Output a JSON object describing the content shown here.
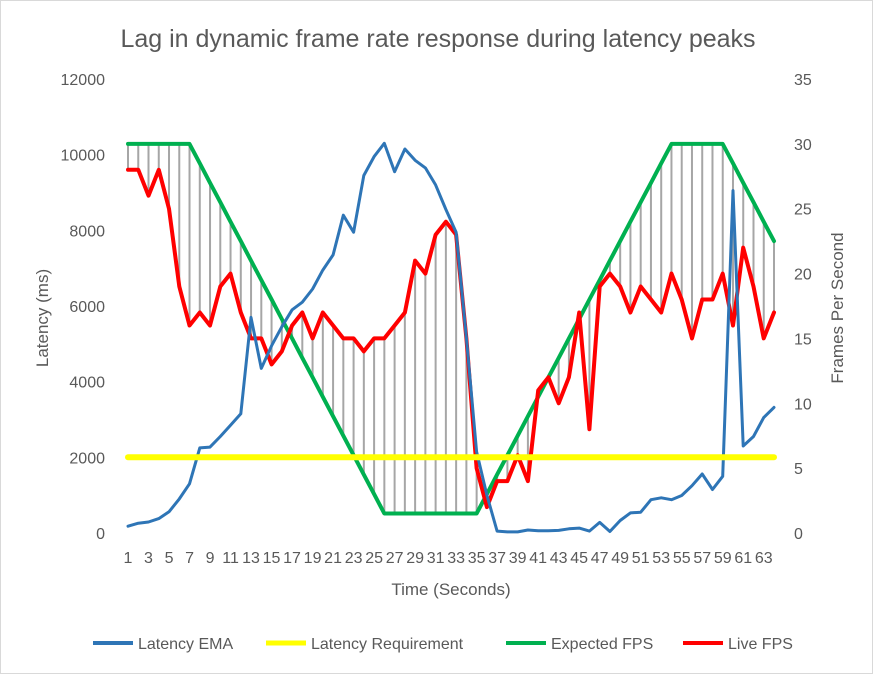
{
  "chart_data": {
    "type": "line",
    "title": "Lag in dynamic frame rate response during latency peaks",
    "xlabel": "Time (Seconds)",
    "ylabel": "Latency (ms)",
    "y2label": "Frames Per Second",
    "x": [
      1,
      2,
      3,
      4,
      5,
      6,
      7,
      8,
      9,
      10,
      11,
      12,
      13,
      14,
      15,
      16,
      17,
      18,
      19,
      20,
      21,
      22,
      23,
      24,
      25,
      26,
      27,
      28,
      29,
      30,
      31,
      32,
      33,
      34,
      35,
      36,
      37,
      38,
      39,
      40,
      41,
      42,
      43,
      44,
      45,
      46,
      47,
      48,
      49,
      50,
      51,
      52,
      53,
      54,
      55,
      56,
      57,
      58,
      59,
      60,
      61,
      62,
      63,
      64
    ],
    "x_tick_labels": [
      "1",
      "3",
      "5",
      "7",
      "9",
      "11",
      "13",
      "15",
      "17",
      "19",
      "21",
      "23",
      "25",
      "27",
      "29",
      "31",
      "33",
      "35",
      "37",
      "39",
      "41",
      "43",
      "45",
      "47",
      "49",
      "51",
      "53",
      "55",
      "57",
      "59",
      "61",
      "63"
    ],
    "ylim": [
      0,
      12000
    ],
    "y_ticks": [
      "0",
      "2000",
      "4000",
      "6000",
      "8000",
      "10000",
      "12000"
    ],
    "y2lim": [
      0,
      35
    ],
    "y2_ticks": [
      "0",
      "5",
      "10",
      "15",
      "20",
      "25",
      "30",
      "35"
    ],
    "grid": false,
    "legend": "bottom",
    "drop_lines": true,
    "series": [
      {
        "name": "Latency EMA",
        "axis": "left",
        "color": "#2e75b6",
        "values": [
          180,
          260,
          290,
          380,
          560,
          900,
          1300,
          2250,
          2270,
          2550,
          2850,
          3150,
          5700,
          4350,
          4950,
          5450,
          5900,
          6100,
          6450,
          6950,
          7350,
          8400,
          7950,
          9450,
          9950,
          10300,
          9550,
          10150,
          9850,
          9650,
          9200,
          8550,
          7950,
          5150,
          2150,
          1000,
          50,
          30,
          30,
          80,
          60,
          60,
          70,
          110,
          130,
          50,
          280,
          40,
          330,
          530,
          550,
          880,
          930,
          880,
          990,
          1250,
          1560,
          1150,
          1500,
          9050,
          2300,
          2550,
          3050,
          3320
        ]
      },
      {
        "name": "Latency Requirement",
        "axis": "left",
        "color": "#ffff00",
        "values": [
          2000,
          2000,
          2000,
          2000,
          2000,
          2000,
          2000,
          2000,
          2000,
          2000,
          2000,
          2000,
          2000,
          2000,
          2000,
          2000,
          2000,
          2000,
          2000,
          2000,
          2000,
          2000,
          2000,
          2000,
          2000,
          2000,
          2000,
          2000,
          2000,
          2000,
          2000,
          2000,
          2000,
          2000,
          2000,
          2000,
          2000,
          2000,
          2000,
          2000,
          2000,
          2000,
          2000,
          2000,
          2000,
          2000,
          2000,
          2000,
          2000,
          2000,
          2000,
          2000,
          2000,
          2000,
          2000,
          2000,
          2000,
          2000,
          2000,
          2000,
          2000,
          2000,
          2000,
          2000
        ]
      },
      {
        "name": "Expected FPS",
        "axis": "right",
        "color": "#00b050",
        "values": [
          30,
          30,
          30,
          30,
          30,
          30,
          30,
          28.5,
          27,
          25.5,
          24,
          22.5,
          21,
          19.5,
          18,
          16.5,
          15,
          13.5,
          12,
          10.5,
          9,
          7.5,
          6,
          4.5,
          3,
          1.5,
          1.5,
          1.5,
          1.5,
          1.5,
          1.5,
          1.5,
          1.5,
          1.5,
          1.5,
          3,
          4.5,
          6,
          7.5,
          9,
          10.5,
          12,
          13.5,
          15,
          16.5,
          18,
          19.5,
          21,
          22.5,
          24,
          25.5,
          27,
          28.5,
          30,
          30,
          30,
          30,
          30,
          30,
          28.5,
          27,
          25.5,
          24,
          22.5
        ]
      },
      {
        "name": "Live FPS",
        "axis": "right",
        "color": "#ff0000",
        "values": [
          28,
          28,
          26,
          28,
          25,
          19,
          16,
          17,
          16,
          19,
          20,
          17,
          15,
          15,
          13,
          14,
          16,
          17,
          15,
          17,
          16,
          15,
          15,
          14,
          15,
          15,
          16,
          17,
          21,
          20,
          23,
          24,
          23,
          15,
          5,
          2,
          4,
          4,
          6,
          4,
          11,
          12,
          10,
          12,
          17,
          8,
          19,
          20,
          19,
          17,
          19,
          18,
          17,
          20,
          18,
          15,
          18,
          18,
          20,
          16,
          22,
          19,
          15,
          17
        ]
      }
    ]
  }
}
